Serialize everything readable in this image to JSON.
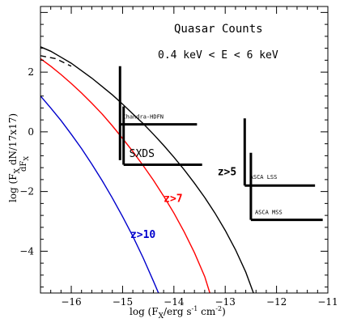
{
  "chart_data": {
    "type": "line",
    "title_line1": "Quasar Counts",
    "title_line2": "0.4 keV < E < 6 keV",
    "xlabel": "log (F",
    "xlabel_sub": "X",
    "xlabel_rest": "/erg s",
    "xlabel_sup1": "-1",
    "xlabel_rest2": " cm",
    "xlabel_sup2": "-2",
    "xlabel_end": ")",
    "ylabel_full": "log (F",
    "ylabel_sub": "X",
    "ylabel_mid": " dN/17x17)",
    "ylabel_frac": "dF",
    "ylabel_frac_sub": "X",
    "xlim": [
      -16.6,
      -11
    ],
    "ylim": [
      -5.4,
      4.2
    ],
    "xticks": [
      -16,
      -15,
      -14,
      -13,
      -12,
      -11
    ],
    "yticks": [
      -4,
      -2,
      0,
      2
    ],
    "tick_labels_x": [
      "−16",
      "−15",
      "−14",
      "−13",
      "−12",
      "−11"
    ],
    "tick_labels_y": [
      "−4",
      "−2",
      "0",
      "2"
    ],
    "series": [
      {
        "name": "z>5",
        "color": "#000000",
        "x": [
          -16.6,
          -16.4,
          -16.2,
          -16.0,
          -15.8,
          -15.6,
          -15.4,
          -15.2,
          -15.0,
          -14.8,
          -14.6,
          -14.4,
          -14.2,
          -14.0,
          -13.8,
          -13.6,
          -13.4,
          -13.2,
          -13.0,
          -12.8,
          -12.6,
          -12.45
        ],
        "y": [
          2.85,
          2.7,
          2.5,
          2.3,
          2.05,
          1.8,
          1.52,
          1.24,
          0.93,
          0.6,
          0.28,
          -0.08,
          -0.45,
          -0.85,
          -1.27,
          -1.72,
          -2.2,
          -2.72,
          -3.3,
          -3.95,
          -4.7,
          -5.4
        ]
      },
      {
        "name": "z>7",
        "color": "#ff0000",
        "x": [
          -16.6,
          -16.4,
          -16.2,
          -16.0,
          -15.8,
          -15.6,
          -15.4,
          -15.2,
          -15.0,
          -14.8,
          -14.6,
          -14.4,
          -14.2,
          -14.0,
          -13.8,
          -13.6,
          -13.4,
          -13.3
        ],
        "y": [
          2.45,
          2.2,
          1.92,
          1.62,
          1.3,
          0.96,
          0.6,
          0.2,
          -0.22,
          -0.66,
          -1.13,
          -1.62,
          -2.15,
          -2.72,
          -3.35,
          -4.05,
          -4.85,
          -5.4
        ]
      },
      {
        "name": "z>10",
        "color": "#0000cc",
        "x": [
          -16.6,
          -16.4,
          -16.2,
          -16.0,
          -15.8,
          -15.6,
          -15.4,
          -15.2,
          -15.0,
          -14.8,
          -14.6,
          -14.4,
          -14.3
        ],
        "y": [
          1.2,
          0.8,
          0.38,
          -0.08,
          -0.56,
          -1.08,
          -1.63,
          -2.22,
          -2.84,
          -3.5,
          -4.22,
          -5.0,
          -5.4
        ]
      },
      {
        "name": "",
        "color": "#000000",
        "dashed": true,
        "x": [
          -16.6,
          -16.3,
          -16.0
        ],
        "y": [
          2.55,
          2.45,
          2.2
        ]
      }
    ],
    "surveys": [
      {
        "name": "Chandra-HDFN",
        "vx": -15.05,
        "vy_top": 2.2,
        "vy_bottom": -0.95,
        "flux": -15.05,
        "level": 0.25,
        "h_end": -13.55,
        "label_size": "small"
      },
      {
        "name": "SXDS",
        "vx": -14.98,
        "vy_top": 0.85,
        "vy_bottom": -1.1,
        "flux": -14.98,
        "level": -1.1,
        "h_end": -13.45,
        "label_size": "large"
      },
      {
        "name": "ASCA LSS",
        "vx": -12.62,
        "vy_top": 0.45,
        "vy_bottom": -1.8,
        "flux": -12.62,
        "level": -1.8,
        "h_end": -11.25,
        "label_size": "small"
      },
      {
        "name": "ASCA MSS",
        "vx": -12.5,
        "vy_top": -0.7,
        "vy_bottom": -2.95,
        "flux": -12.5,
        "level": -2.95,
        "h_end": -11.1,
        "label_size": "small"
      }
    ],
    "grid": false,
    "legend": "none (inline labels)"
  }
}
